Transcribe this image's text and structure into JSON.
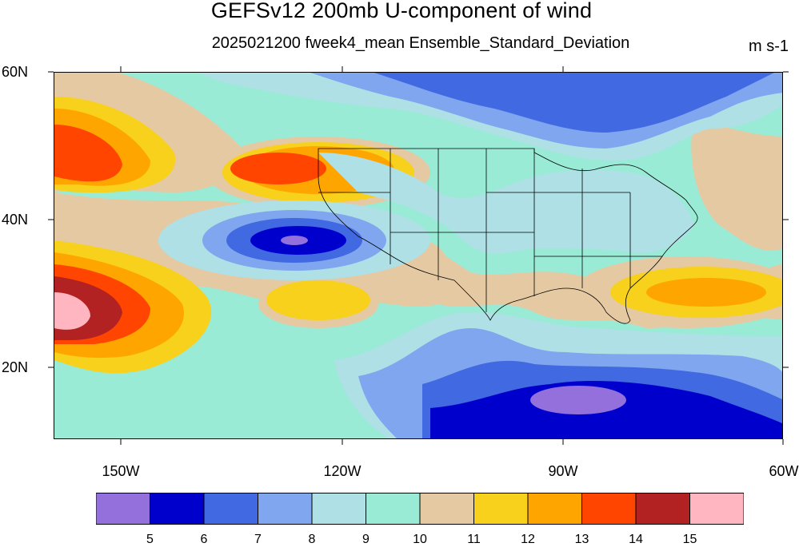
{
  "title": "GEFSv12 200mb U-component of wind",
  "subtitle": "2025021200 fweek4_mean Ensemble_Standard_Deviation",
  "units": "m s-1",
  "lat_labels": [
    "60N",
    "40N",
    "20N"
  ],
  "lon_labels": [
    "150W",
    "120W",
    "90W",
    "60W"
  ],
  "colorbar": {
    "colors": [
      "#9370DB",
      "#0000CD",
      "#4169E1",
      "#7FA6EE",
      "#AEE0E6",
      "#99EBD6",
      "#E5C9A3",
      "#F7D11B",
      "#FFA500",
      "#FF4500",
      "#B22222",
      "#FFB6C1"
    ],
    "labels": [
      "5",
      "6",
      "7",
      "8",
      "9",
      "10",
      "11",
      "12",
      "13",
      "14",
      "15"
    ]
  }
}
